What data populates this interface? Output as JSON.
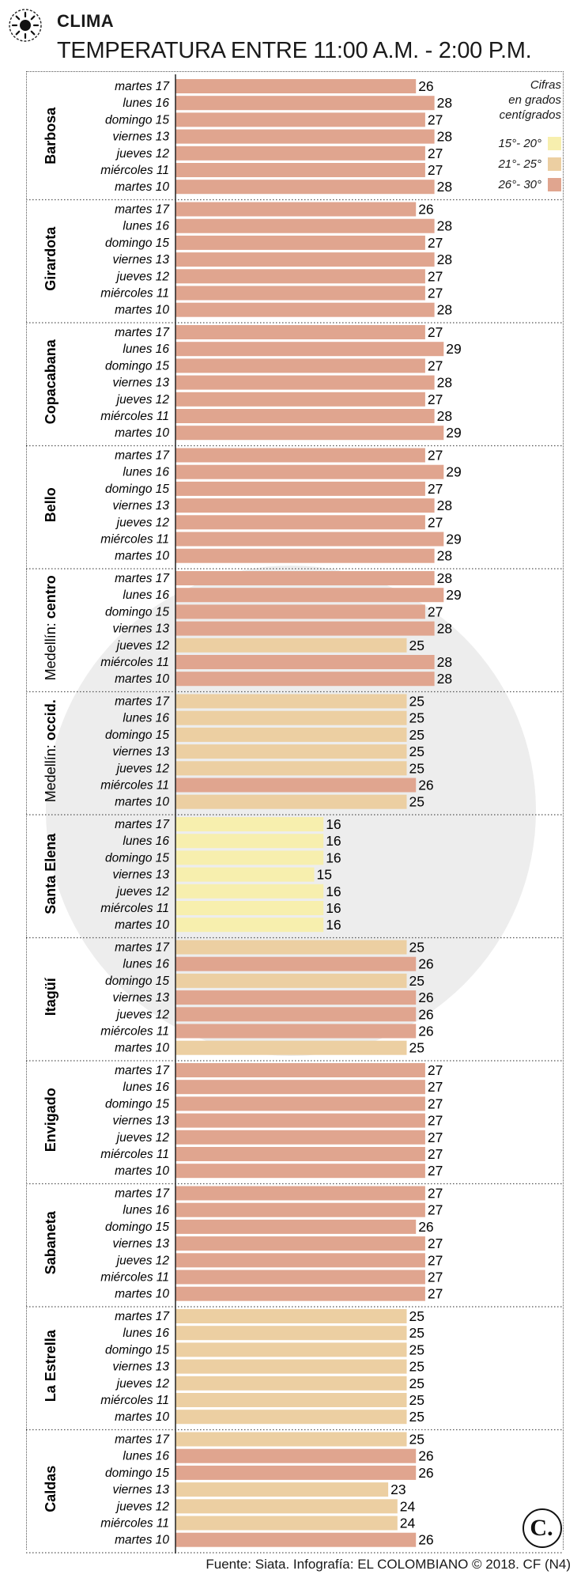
{
  "header": {
    "section": "CLIMA",
    "title": "TEMPERATURA ENTRE 11:00 A.M. - 2:00 P.M."
  },
  "legend": {
    "note": [
      "Cifras",
      "en grados",
      "centígrados"
    ],
    "items": [
      {
        "label": "15°- 20°",
        "color": "#f7efae"
      },
      {
        "label": "21°- 25°",
        "color": "#eccfa2"
      },
      {
        "label": "26°- 30°",
        "color": "#e0a58f"
      }
    ]
  },
  "footer": {
    "source": "Fuente: Siata. Infografía: EL COLOMBIANO © 2018. CF (N4)",
    "logo_text": "C."
  },
  "chart_data": {
    "type": "bar",
    "orientation": "horizontal",
    "unit": "grados centígrados",
    "categories": [
      "martes 17",
      "lunes 16",
      "domingo 15",
      "viernes 13",
      "jueves 12",
      "miércoles 11",
      "martes 10"
    ],
    "groups": [
      {
        "name": "Barbosa",
        "values": [
          26,
          28,
          27,
          28,
          27,
          27,
          28
        ]
      },
      {
        "name": "Girardota",
        "values": [
          26,
          28,
          27,
          28,
          27,
          27,
          28
        ]
      },
      {
        "name": "Copacabana",
        "values": [
          27,
          29,
          27,
          28,
          27,
          28,
          29
        ]
      },
      {
        "name": "Bello",
        "values": [
          27,
          29,
          27,
          28,
          27,
          29,
          28
        ]
      },
      {
        "name": "Medellín: centro",
        "name_prefix": "Medellín: ",
        "name_bold": "centro",
        "values": [
          28,
          29,
          27,
          28,
          25,
          28,
          28
        ]
      },
      {
        "name": "Medellín: occid.",
        "name_prefix": "Medellín: ",
        "name_bold": "occid.",
        "values": [
          25,
          25,
          25,
          25,
          25,
          26,
          25
        ]
      },
      {
        "name": "Santa Elena",
        "values": [
          16,
          16,
          16,
          15,
          16,
          16,
          16
        ]
      },
      {
        "name": "Itagüí",
        "values": [
          25,
          26,
          25,
          26,
          26,
          26,
          25
        ]
      },
      {
        "name": "Envigado",
        "values": [
          27,
          27,
          27,
          27,
          27,
          27,
          27
        ]
      },
      {
        "name": "Sabaneta",
        "values": [
          27,
          27,
          26,
          27,
          27,
          27,
          27
        ]
      },
      {
        "name": "La Estrella",
        "values": [
          25,
          25,
          25,
          25,
          25,
          25,
          25
        ]
      },
      {
        "name": "Caldas",
        "values": [
          25,
          26,
          26,
          23,
          24,
          24,
          26
        ]
      }
    ],
    "color_ranges": [
      {
        "min": 15,
        "max": 20,
        "color": "#f7efae"
      },
      {
        "min": 21,
        "max": 25,
        "color": "#eccfa2"
      },
      {
        "min": 26,
        "max": 30,
        "color": "#e0a58f"
      }
    ],
    "xlim": [
      0,
      30
    ],
    "grid": false,
    "legend_position": "top-right"
  }
}
